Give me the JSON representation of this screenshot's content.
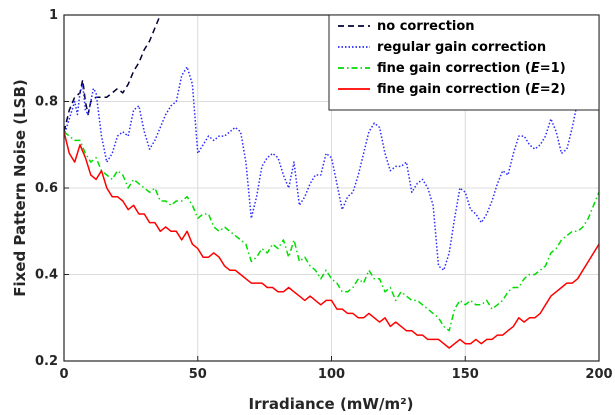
{
  "chart_data": {
    "type": "line",
    "title": "",
    "xlabel": "Irradiance (mW/m²)",
    "ylabel": "Fixed Pattern Noise (LSB)",
    "xlim": [
      0,
      200
    ],
    "ylim": [
      0.2,
      1.0
    ],
    "xticks": [
      0,
      50,
      100,
      150,
      200
    ],
    "xtick_labels": [
      "0",
      "50",
      "100",
      "150",
      "200"
    ],
    "yticks": [
      0.2,
      0.4,
      0.6,
      0.8,
      1.0
    ],
    "ytick_labels": [
      "0.2",
      "0.4",
      "0.6",
      "0.8",
      "1"
    ],
    "grid": true,
    "legend_position": "top-right",
    "series": [
      {
        "name": "no correction",
        "legend_parts": [
          "no correction"
        ],
        "color": "#000033",
        "dash": "dashed",
        "x": [
          0,
          2,
          4,
          6,
          7,
          8,
          9,
          10,
          12,
          14,
          16,
          18,
          20,
          22,
          24,
          26,
          28,
          30,
          32,
          34,
          36
        ],
        "y": [
          0.73,
          0.78,
          0.81,
          0.82,
          0.85,
          0.8,
          0.77,
          0.8,
          0.81,
          0.81,
          0.81,
          0.82,
          0.83,
          0.82,
          0.84,
          0.87,
          0.89,
          0.92,
          0.94,
          0.97,
          1.0
        ]
      },
      {
        "name": "regular gain correction",
        "legend_parts": [
          "regular gain correction"
        ],
        "color": "#2a2aff",
        "dash": "dotted",
        "x": [
          0,
          2,
          4,
          5,
          6,
          7,
          8,
          9,
          10,
          11,
          12,
          14,
          16,
          18,
          20,
          22,
          24,
          26,
          28,
          30,
          32,
          34,
          36,
          38,
          40,
          42,
          44,
          46,
          48,
          50,
          52,
          54,
          56,
          58,
          60,
          62,
          64,
          66,
          68,
          70,
          72,
          74,
          76,
          78,
          80,
          82,
          84,
          86,
          88,
          90,
          92,
          94,
          96,
          98,
          100,
          102,
          104,
          106,
          108,
          110,
          112,
          114,
          116,
          118,
          120,
          122,
          124,
          126,
          128,
          130,
          132,
          134,
          136,
          138,
          140,
          142,
          144,
          146,
          148,
          150,
          152,
          154,
          156,
          158,
          160,
          162,
          164,
          166,
          168,
          170,
          172,
          174,
          176,
          178,
          180,
          182,
          184,
          186,
          188,
          190,
          192,
          194,
          196,
          198,
          200
        ],
        "y": [
          0.72,
          0.76,
          0.8,
          0.77,
          0.82,
          0.84,
          0.78,
          0.77,
          0.8,
          0.83,
          0.82,
          0.72,
          0.66,
          0.68,
          0.72,
          0.73,
          0.72,
          0.78,
          0.79,
          0.73,
          0.69,
          0.71,
          0.74,
          0.77,
          0.79,
          0.8,
          0.86,
          0.88,
          0.84,
          0.68,
          0.7,
          0.72,
          0.71,
          0.72,
          0.72,
          0.73,
          0.74,
          0.73,
          0.66,
          0.53,
          0.58,
          0.65,
          0.67,
          0.68,
          0.67,
          0.63,
          0.6,
          0.66,
          0.56,
          0.58,
          0.61,
          0.63,
          0.63,
          0.68,
          0.67,
          0.61,
          0.55,
          0.58,
          0.59,
          0.63,
          0.68,
          0.73,
          0.75,
          0.74,
          0.68,
          0.64,
          0.65,
          0.65,
          0.66,
          0.59,
          0.61,
          0.62,
          0.6,
          0.56,
          0.42,
          0.41,
          0.45,
          0.53,
          0.6,
          0.59,
          0.55,
          0.54,
          0.52,
          0.54,
          0.57,
          0.61,
          0.64,
          0.63,
          0.68,
          0.72,
          0.72,
          0.7,
          0.69,
          0.7,
          0.72,
          0.76,
          0.73,
          0.68,
          0.69,
          0.74,
          0.8,
          0.82,
          0.85,
          0.83,
          0.88
        ]
      },
      {
        "name": "fine gain correction (E=1)",
        "legend_parts": [
          "fine gain correction (",
          "E",
          "=1)"
        ],
        "color": "#00dd00",
        "dash": "dashdot",
        "x": [
          0,
          2,
          4,
          6,
          8,
          10,
          12,
          14,
          16,
          18,
          20,
          22,
          24,
          26,
          28,
          30,
          32,
          34,
          36,
          38,
          40,
          42,
          44,
          46,
          48,
          50,
          52,
          54,
          56,
          58,
          60,
          62,
          64,
          66,
          68,
          70,
          72,
          74,
          76,
          78,
          80,
          82,
          84,
          86,
          88,
          90,
          92,
          94,
          96,
          98,
          100,
          102,
          104,
          106,
          108,
          110,
          112,
          114,
          116,
          118,
          120,
          122,
          124,
          126,
          128,
          130,
          132,
          134,
          136,
          138,
          140,
          142,
          144,
          146,
          148,
          150,
          152,
          154,
          156,
          158,
          160,
          162,
          164,
          166,
          168,
          170,
          172,
          174,
          176,
          178,
          180,
          182,
          184,
          186,
          188,
          190,
          192,
          194,
          196,
          198,
          200
        ],
        "y": [
          0.73,
          0.72,
          0.71,
          0.71,
          0.68,
          0.66,
          0.67,
          0.64,
          0.63,
          0.62,
          0.64,
          0.63,
          0.6,
          0.62,
          0.61,
          0.6,
          0.59,
          0.6,
          0.57,
          0.57,
          0.56,
          0.57,
          0.57,
          0.58,
          0.56,
          0.53,
          0.54,
          0.54,
          0.51,
          0.5,
          0.51,
          0.5,
          0.49,
          0.48,
          0.47,
          0.43,
          0.44,
          0.46,
          0.45,
          0.47,
          0.46,
          0.48,
          0.44,
          0.48,
          0.43,
          0.44,
          0.42,
          0.41,
          0.39,
          0.41,
          0.39,
          0.38,
          0.36,
          0.36,
          0.37,
          0.39,
          0.38,
          0.41,
          0.39,
          0.39,
          0.36,
          0.37,
          0.34,
          0.36,
          0.35,
          0.34,
          0.34,
          0.33,
          0.32,
          0.31,
          0.3,
          0.28,
          0.27,
          0.32,
          0.34,
          0.33,
          0.34,
          0.33,
          0.33,
          0.34,
          0.32,
          0.33,
          0.34,
          0.36,
          0.37,
          0.37,
          0.39,
          0.4,
          0.4,
          0.41,
          0.42,
          0.45,
          0.46,
          0.48,
          0.49,
          0.5,
          0.5,
          0.51,
          0.53,
          0.56,
          0.59
        ]
      },
      {
        "name": "fine gain correction (E=2)",
        "legend_parts": [
          "fine gain correction (",
          "E",
          "=2)"
        ],
        "color": "#ff0000",
        "dash": "solid",
        "x": [
          0,
          2,
          4,
          6,
          8,
          10,
          12,
          14,
          16,
          18,
          20,
          22,
          24,
          26,
          28,
          30,
          32,
          34,
          36,
          38,
          40,
          42,
          44,
          46,
          48,
          50,
          52,
          54,
          56,
          58,
          60,
          62,
          64,
          66,
          68,
          70,
          72,
          74,
          76,
          78,
          80,
          82,
          84,
          86,
          88,
          90,
          92,
          94,
          96,
          98,
          100,
          102,
          104,
          106,
          108,
          110,
          112,
          114,
          116,
          118,
          120,
          122,
          124,
          126,
          128,
          130,
          132,
          134,
          136,
          138,
          140,
          142,
          144,
          146,
          148,
          150,
          152,
          154,
          156,
          158,
          160,
          162,
          164,
          166,
          168,
          170,
          172,
          174,
          176,
          178,
          180,
          182,
          184,
          186,
          188,
          190,
          192,
          194,
          196,
          198,
          200
        ],
        "y": [
          0.73,
          0.68,
          0.66,
          0.7,
          0.67,
          0.63,
          0.62,
          0.64,
          0.6,
          0.58,
          0.58,
          0.57,
          0.55,
          0.56,
          0.54,
          0.54,
          0.52,
          0.52,
          0.5,
          0.51,
          0.5,
          0.5,
          0.48,
          0.5,
          0.47,
          0.46,
          0.44,
          0.44,
          0.45,
          0.44,
          0.42,
          0.41,
          0.41,
          0.4,
          0.39,
          0.38,
          0.38,
          0.38,
          0.37,
          0.37,
          0.36,
          0.36,
          0.37,
          0.36,
          0.35,
          0.34,
          0.35,
          0.34,
          0.33,
          0.34,
          0.34,
          0.32,
          0.32,
          0.31,
          0.31,
          0.3,
          0.3,
          0.31,
          0.3,
          0.29,
          0.3,
          0.28,
          0.29,
          0.28,
          0.27,
          0.27,
          0.26,
          0.26,
          0.25,
          0.25,
          0.25,
          0.24,
          0.23,
          0.24,
          0.25,
          0.24,
          0.24,
          0.25,
          0.24,
          0.25,
          0.25,
          0.26,
          0.26,
          0.27,
          0.28,
          0.3,
          0.29,
          0.3,
          0.3,
          0.31,
          0.33,
          0.35,
          0.36,
          0.37,
          0.38,
          0.38,
          0.39,
          0.41,
          0.43,
          0.45,
          0.47
        ]
      }
    ]
  }
}
